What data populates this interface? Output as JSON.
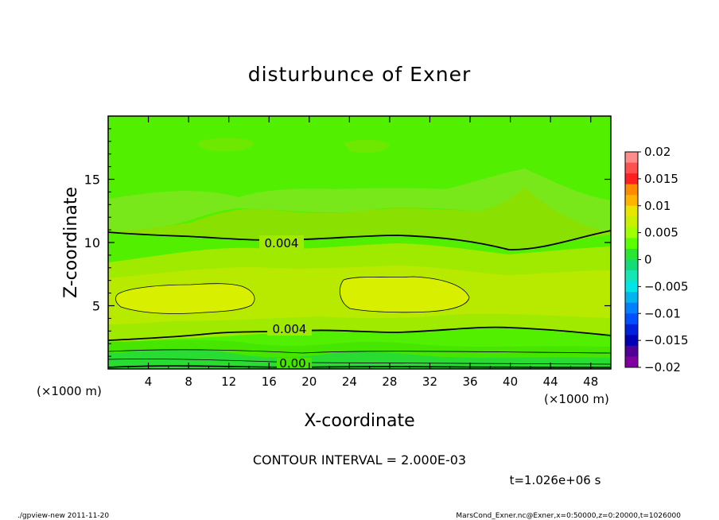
{
  "chart_data": {
    "type": "heatmap",
    "title": "disturbunce of Exner",
    "xlabel": "X-coordinate",
    "ylabel": "Z-coordinate",
    "x_unit": "(×1000 m)",
    "y_unit": "(×1000 m)",
    "xlim": [
      0,
      50
    ],
    "ylim": [
      0,
      20
    ],
    "x_ticks": [
      4,
      8,
      12,
      16,
      20,
      24,
      28,
      32,
      36,
      40,
      44,
      48
    ],
    "y_ticks": [
      5,
      10,
      15
    ],
    "colorbar": {
      "levels": [
        0.02,
        0.015,
        0.01,
        0.005,
        0,
        -0.005,
        -0.01,
        -0.015,
        -0.02
      ],
      "labels": [
        "0.02",
        "0.015",
        "0.01",
        "0.005",
        "0",
        "−0.005",
        "−0.01",
        "−0.015",
        "−0.02"
      ],
      "colors_top_to_bottom": [
        "#ff8c8c",
        "#ff5050",
        "#ff2020",
        "#ff8c00",
        "#ffb400",
        "#e6e600",
        "#c8f000",
        "#a0ff00",
        "#5aff00",
        "#28e632",
        "#14dc78",
        "#14e6b4",
        "#00e6e6",
        "#00b4f0",
        "#0080ff",
        "#0050ff",
        "#0020dc",
        "#0000b4",
        "#500096",
        "#8000a0"
      ]
    },
    "contour_interval": "CONTOUR INTERVAL = 2.000E-03",
    "contour_labels": [
      "0.004",
      "0.004",
      "0.00"
    ],
    "time_label": "t=1.026e+06 s"
  },
  "footer": {
    "left": "./gpview-new   2011-11-20",
    "right": "MarsCond_Exner.nc@Exner,x=0:50000,z=0:20000,t=1026000"
  }
}
